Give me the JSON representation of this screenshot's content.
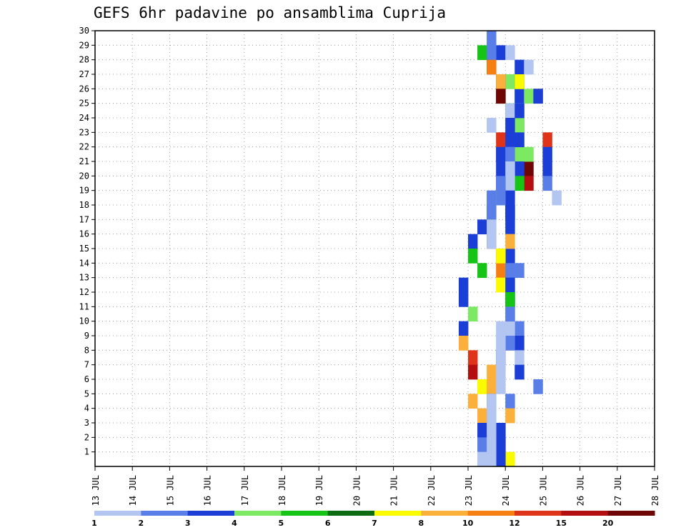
{
  "chart_data": {
    "type": "heatmap",
    "title": "GEFS 6hr padavine po ansamblima Cuprija",
    "xlabel": "",
    "ylabel": "",
    "x_tick_labels": [
      "13 JUL",
      "14 JUL",
      "15 JUL",
      "16 JUL",
      "17 JUL",
      "18 JUL",
      "19 JUL",
      "20 JUL",
      "21 JUL",
      "22 JUL",
      "23 JUL",
      "24 JUL",
      "25 JUL",
      "26 JUL",
      "27 JUL",
      "28 JUL"
    ],
    "y_tick_labels": [
      "1",
      "2",
      "3",
      "4",
      "5",
      "6",
      "7",
      "8",
      "9",
      "10",
      "11",
      "12",
      "13",
      "14",
      "15",
      "16",
      "17",
      "18",
      "19",
      "20",
      "21",
      "22",
      "23",
      "24",
      "25",
      "26",
      "27",
      "28",
      "29",
      "30"
    ],
    "ylim": [
      0,
      30
    ],
    "x_step_hours": 6,
    "colorbar": {
      "labels": [
        "1",
        "2",
        "3",
        "4",
        "5",
        "6",
        "7",
        "8",
        "10",
        "12",
        "15",
        "20"
      ],
      "colors": [
        "#b3c6f2",
        "#5a7ee8",
        "#1b3fd6",
        "#7de862",
        "#16c416",
        "#0d6b10",
        "#fbfb00",
        "#fbb03b",
        "#f67f12",
        "#e0341a",
        "#b40f0f",
        "#6e0606"
      ]
    },
    "cells": [
      [
        29,
        41,
        4
      ],
      [
        29,
        43,
        2
      ],
      [
        30,
        42,
        1
      ],
      [
        26,
        45,
        4
      ],
      [
        27,
        44,
        3
      ],
      [
        26,
        45,
        2
      ],
      [
        25,
        45,
        2
      ],
      [
        24,
        45,
        2
      ],
      [
        23,
        45,
        2
      ],
      [
        22,
        48,
        3
      ],
      [
        21,
        48,
        2
      ],
      [
        20,
        48,
        1
      ],
      [
        19,
        49,
        0
      ],
      [
        24,
        45,
        0
      ],
      [
        23,
        48,
        9
      ],
      [
        22,
        48,
        2
      ],
      [
        22,
        45,
        3
      ],
      [
        21,
        46,
        11
      ],
      [
        20,
        46,
        10
      ],
      [
        26,
        47,
        10
      ],
      [
        26,
        47,
        0
      ],
      [
        29,
        42,
        1
      ],
      [
        28,
        42,
        2
      ],
      [
        27,
        43,
        2
      ],
      [
        26,
        43,
        5
      ],
      [
        25,
        45,
        0
      ],
      [
        24,
        44,
        0
      ],
      [
        23,
        44,
        2
      ],
      [
        22,
        43,
        1
      ],
      [
        21,
        44,
        1
      ],
      [
        20,
        43,
        2
      ],
      [
        19,
        42,
        1
      ],
      [
        18,
        42,
        2
      ],
      [
        17,
        41,
        2
      ],
      [
        16,
        40,
        2
      ],
      [
        15,
        40,
        4
      ],
      [
        14,
        41,
        4
      ],
      [
        13,
        39,
        2
      ],
      [
        12,
        39,
        2
      ],
      [
        11,
        40,
        3
      ],
      [
        10,
        39,
        2
      ],
      [
        9,
        39,
        7
      ],
      [
        8,
        40,
        9
      ],
      [
        7,
        40,
        10
      ],
      [
        6,
        41,
        6
      ],
      [
        5,
        40,
        7
      ],
      [
        4,
        41,
        7
      ],
      [
        3,
        41,
        2
      ],
      [
        2,
        41,
        1
      ],
      [
        1,
        41,
        0
      ],
      [
        28,
        42,
        8
      ],
      [
        27,
        43,
        7
      ],
      [
        26,
        43,
        11
      ],
      [
        25,
        44,
        4
      ],
      [
        24,
        45,
        3
      ],
      [
        23,
        45,
        2
      ],
      [
        22,
        46,
        3
      ],
      [
        21,
        45,
        2
      ],
      [
        20,
        45,
        4
      ],
      [
        19,
        43,
        3
      ],
      [
        18,
        42,
        1
      ],
      [
        17,
        42,
        5
      ],
      [
        16,
        42,
        10
      ],
      [
        15,
        43,
        8
      ],
      [
        14,
        43,
        8
      ],
      [
        13,
        43,
        6
      ],
      [
        12,
        44,
        5
      ],
      [
        11,
        44,
        0
      ],
      [
        10,
        45,
        1
      ],
      [
        9,
        45,
        2
      ],
      [
        8,
        45,
        0
      ],
      [
        7,
        45,
        2
      ],
      [
        6,
        47,
        1
      ],
      [
        5,
        44,
        1
      ],
      [
        4,
        44,
        7
      ],
      [
        3,
        43,
        7
      ],
      [
        2,
        43,
        9
      ],
      [
        1,
        44,
        6
      ],
      [
        29,
        44,
        0
      ],
      [
        28,
        45,
        2
      ],
      [
        27,
        45,
        5
      ],
      [
        26,
        46,
        3
      ],
      [
        25,
        44,
        0
      ],
      [
        24,
        42,
        0
      ],
      [
        23,
        43,
        9
      ],
      [
        22,
        43,
        2
      ],
      [
        21,
        43,
        2
      ],
      [
        20,
        44,
        0
      ],
      [
        19,
        44,
        2
      ],
      [
        18,
        44,
        2
      ],
      [
        17,
        42,
        0
      ],
      [
        16,
        42,
        0
      ],
      [
        15,
        44,
        2
      ],
      [
        14,
        45,
        1
      ],
      [
        13,
        44,
        0
      ],
      [
        12,
        44,
        1
      ],
      [
        11,
        44,
        0
      ],
      [
        10,
        44,
        0
      ],
      [
        9,
        44,
        1
      ],
      [
        8,
        43,
        2
      ],
      [
        7,
        42,
        7
      ],
      [
        6,
        42,
        7
      ],
      [
        5,
        42,
        2
      ],
      [
        4,
        42,
        1
      ],
      [
        3,
        43,
        2
      ],
      [
        2,
        43,
        2
      ],
      [
        1,
        43,
        2
      ],
      [
        28,
        46,
        0
      ],
      [
        27,
        45,
        6
      ],
      [
        26,
        47,
        2
      ],
      [
        25,
        45,
        2
      ],
      [
        24,
        44,
        2
      ],
      [
        23,
        44,
        2
      ],
      [
        22,
        44,
        1
      ],
      [
        21,
        44,
        0
      ],
      [
        20,
        43,
        1
      ],
      [
        19,
        43,
        1
      ],
      [
        18,
        44,
        2
      ],
      [
        17,
        44,
        2
      ],
      [
        16,
        44,
        7
      ],
      [
        15,
        43,
        6
      ],
      [
        14,
        44,
        1
      ],
      [
        13,
        44,
        2
      ],
      [
        12,
        44,
        4
      ],
      [
        11,
        44,
        1
      ],
      [
        10,
        43,
        0
      ],
      [
        9,
        43,
        0
      ],
      [
        8,
        43,
        0
      ],
      [
        7,
        43,
        0
      ],
      [
        6,
        43,
        0
      ],
      [
        5,
        42,
        0
      ],
      [
        4,
        42,
        0
      ],
      [
        3,
        42,
        0
      ],
      [
        2,
        42,
        0
      ],
      [
        1,
        42,
        0
      ]
    ],
    "note_cells": "each cell = [member (y, 1-30), lead step (6h steps since 13 JUL 00Z), color class index]"
  }
}
